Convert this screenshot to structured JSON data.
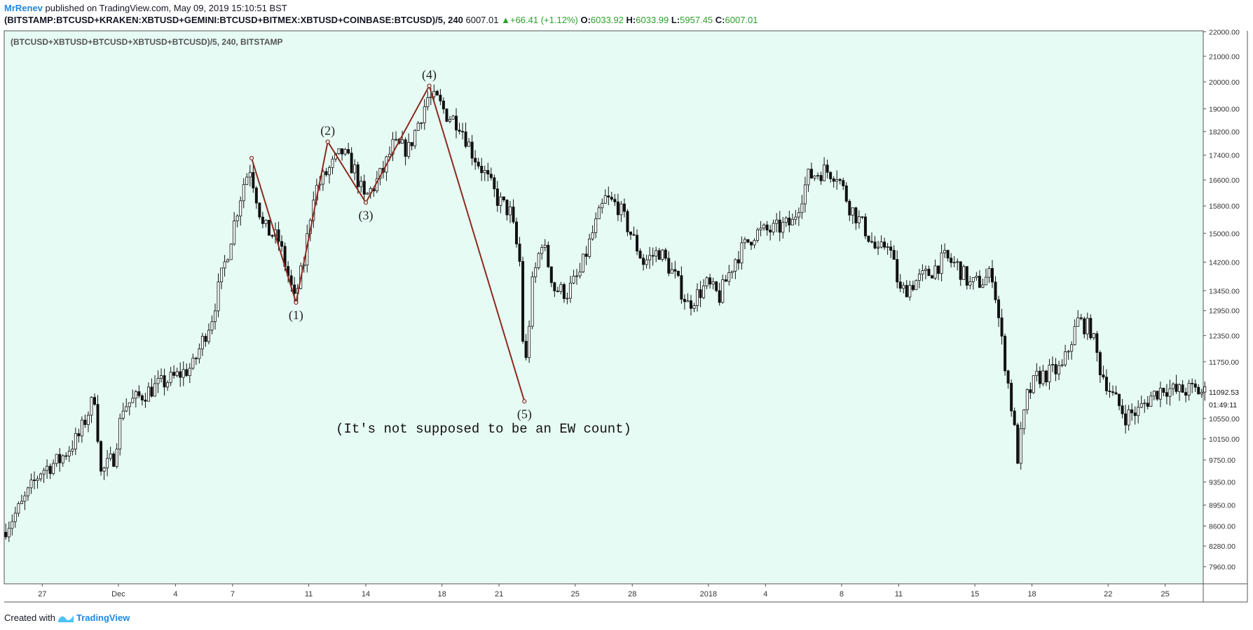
{
  "header": {
    "author": "MrRenev",
    "published": "published on TradingView.com, May 09, 2019 15:10:51 BST",
    "symbol": "(BITSTAMP:BTCUSD+KRAKEN:XBTUSD+GEMINI:BTCUSD+BITMEX:XBTUSD+COINBASE:BTCUSD)/5, 240",
    "last": "6007.01",
    "change": "+66.41 (+1.12%)",
    "o_label": "O:",
    "o_value": "6033.92",
    "h_label": "H:",
    "h_value": "6033.99",
    "l_label": "L:",
    "l_value": "5957.45",
    "c_label": "C:",
    "c_value": "6007.01"
  },
  "footer": {
    "created_with": "Created with",
    "brand": "TradingView"
  },
  "colors": {
    "background": "#e6fbf3",
    "candle": "#111111",
    "wave_line": "#8b2a1f",
    "axis_text": "#333333"
  },
  "chart_data": {
    "type": "candlestick",
    "title": "(BTCUSD+XBTUSD+BTCUSD+XBTUSD+BTCUSD)/5, 240, BITSTAMP",
    "y_scale": "log",
    "ylim": [
      7500,
      22300
    ],
    "y_ticks": [
      "22000.00",
      "21000.00",
      "20000.00",
      "19000.00",
      "18200.00",
      "17400.00",
      "16600.00",
      "15800.00",
      "15000.00",
      "14200.00",
      "13450.00",
      "12950.00",
      "12350.00",
      "11750.00",
      "10550.00",
      "10150.00",
      "9750.00",
      "9350.00",
      "8950.00",
      "8600.00",
      "8280.00",
      "7960.00"
    ],
    "price_label": "11092.53",
    "countdown": "01:49:11",
    "x_range": [
      "2017-11-25",
      "2018-01-27"
    ],
    "x_ticks": [
      {
        "label": "27",
        "date": "2017-11-27"
      },
      {
        "label": "Dec",
        "date": "2017-12-01"
      },
      {
        "label": "4",
        "date": "2017-12-04"
      },
      {
        "label": "7",
        "date": "2017-12-07"
      },
      {
        "label": "11",
        "date": "2017-12-11"
      },
      {
        "label": "14",
        "date": "2017-12-14"
      },
      {
        "label": "18",
        "date": "2017-12-18"
      },
      {
        "label": "21",
        "date": "2017-12-21"
      },
      {
        "label": "25",
        "date": "2017-12-25"
      },
      {
        "label": "28",
        "date": "2017-12-28"
      },
      {
        "label": "2018",
        "date": "2018-01-01"
      },
      {
        "label": "4",
        "date": "2018-01-04"
      },
      {
        "label": "8",
        "date": "2018-01-08"
      },
      {
        "label": "11",
        "date": "2018-01-11"
      },
      {
        "label": "15",
        "date": "2018-01-15"
      },
      {
        "label": "18",
        "date": "2018-01-18"
      },
      {
        "label": "22",
        "date": "2018-01-22"
      },
      {
        "label": "25",
        "date": "2018-01-25"
      }
    ],
    "price_path": [
      [
        "2017-11-25T00:00",
        8500
      ],
      [
        "2017-11-26T00:00",
        8950
      ],
      [
        "2017-11-27T00:00",
        9550
      ],
      [
        "2017-11-28T00:00",
        9750
      ],
      [
        "2017-11-29T00:00",
        10200
      ],
      [
        "2017-11-29T20:00",
        11000
      ],
      [
        "2017-11-30T04:00",
        9500
      ],
      [
        "2017-11-30T20:00",
        9800
      ],
      [
        "2017-12-01T08:00",
        10800
      ],
      [
        "2017-12-02T00:00",
        10950
      ],
      [
        "2017-12-03T00:00",
        11200
      ],
      [
        "2017-12-04T00:00",
        11400
      ],
      [
        "2017-12-05T00:00",
        11650
      ],
      [
        "2017-12-06T00:00",
        12800
      ],
      [
        "2017-12-06T20:00",
        14500
      ],
      [
        "2017-12-07T16:00",
        16500
      ],
      [
        "2017-12-08T00:00",
        17000
      ],
      [
        "2017-12-08T16:00",
        15200
      ],
      [
        "2017-12-09T12:00",
        14800
      ],
      [
        "2017-12-10T08:00",
        13200
      ],
      [
        "2017-12-10T20:00",
        14200
      ],
      [
        "2017-12-11T08:00",
        16200
      ],
      [
        "2017-12-12T00:00",
        16800
      ],
      [
        "2017-12-12T20:00",
        17500
      ],
      [
        "2017-12-13T12:00",
        16900
      ],
      [
        "2017-12-14T00:00",
        16000
      ],
      [
        "2017-12-14T12:00",
        16400
      ],
      [
        "2017-12-15T00:00",
        16900
      ],
      [
        "2017-12-15T12:00",
        17700
      ],
      [
        "2017-12-16T08:00",
        17600
      ],
      [
        "2017-12-16T20:00",
        18500
      ],
      [
        "2017-12-17T08:00",
        19400
      ],
      [
        "2017-12-17T20:00",
        19300
      ],
      [
        "2017-12-18T08:00",
        18800
      ],
      [
        "2017-12-19T00:00",
        18500
      ],
      [
        "2017-12-19T16:00",
        17500
      ],
      [
        "2017-12-20T08:00",
        16800
      ],
      [
        "2017-12-21T00:00",
        16000
      ],
      [
        "2017-12-21T16:00",
        15600
      ],
      [
        "2017-12-22T04:00",
        14200
      ],
      [
        "2017-12-22T10:00",
        11300
      ],
      [
        "2017-12-22T20:00",
        13600
      ],
      [
        "2017-12-23T08:00",
        14800
      ],
      [
        "2017-12-24T00:00",
        13500
      ],
      [
        "2017-12-24T16:00",
        13400
      ],
      [
        "2017-12-25T08:00",
        13900
      ],
      [
        "2017-12-26T00:00",
        15000
      ],
      [
        "2017-12-26T16:00",
        16000
      ],
      [
        "2017-12-27T08:00",
        15800
      ],
      [
        "2017-12-28T00:00",
        15000
      ],
      [
        "2017-12-28T16:00",
        14200
      ],
      [
        "2017-12-29T12:00",
        14500
      ],
      [
        "2017-12-30T08:00",
        13800
      ],
      [
        "2017-12-31T00:00",
        13100
      ],
      [
        "2018-01-01T00:00",
        13600
      ],
      [
        "2018-01-01T16:00",
        13300
      ],
      [
        "2018-01-02T12:00",
        14300
      ],
      [
        "2018-01-03T12:00",
        15000
      ],
      [
        "2018-01-04T12:00",
        15100
      ],
      [
        "2018-01-05T12:00",
        15300
      ],
      [
        "2018-01-06T08:00",
        16700
      ],
      [
        "2018-01-07T04:00",
        16900
      ],
      [
        "2018-01-07T20:00",
        16800
      ],
      [
        "2018-01-08T12:00",
        15800
      ],
      [
        "2018-01-09T08:00",
        15100
      ],
      [
        "2018-01-10T00:00",
        14400
      ],
      [
        "2018-01-10T12:00",
        14800
      ],
      [
        "2018-01-11T04:00",
        13400
      ],
      [
        "2018-01-12T00:00",
        13700
      ],
      [
        "2018-01-12T16:00",
        13900
      ],
      [
        "2018-01-13T12:00",
        14300
      ],
      [
        "2018-01-14T04:00",
        14100
      ],
      [
        "2018-01-14T20:00",
        13600
      ],
      [
        "2018-01-15T12:00",
        13700
      ],
      [
        "2018-01-16T00:00",
        13900
      ],
      [
        "2018-01-16T12:00",
        12200
      ],
      [
        "2018-01-17T00:00",
        10800
      ],
      [
        "2018-01-17T08:00",
        9800
      ],
      [
        "2018-01-17T20:00",
        11000
      ],
      [
        "2018-01-18T08:00",
        11400
      ],
      [
        "2018-01-19T00:00",
        11500
      ],
      [
        "2018-01-19T16:00",
        11600
      ],
      [
        "2018-01-20T12:00",
        12700
      ],
      [
        "2018-01-21T04:00",
        12500
      ],
      [
        "2018-01-21T16:00",
        11600
      ],
      [
        "2018-01-22T08:00",
        11000
      ],
      [
        "2018-01-23T00:00",
        10600
      ],
      [
        "2018-01-23T16:00",
        10700
      ],
      [
        "2018-01-24T08:00",
        11000
      ],
      [
        "2018-01-25T00:00",
        11200
      ],
      [
        "2018-01-25T16:00",
        11100
      ],
      [
        "2018-01-26T12:00",
        11150
      ],
      [
        "2018-01-27T00:00",
        11092
      ]
    ],
    "annotation_points": [
      {
        "label": "",
        "date": "2017-12-08T00:00",
        "price": 17300
      },
      {
        "label": "(1)",
        "date": "2017-12-10T08:00",
        "price": 13150
      },
      {
        "label": "(2)",
        "date": "2017-12-12T00:00",
        "price": 17850
      },
      {
        "label": "(3)",
        "date": "2017-12-14T00:00",
        "price": 15900
      },
      {
        "label": "(4)",
        "date": "2017-12-17T08:00",
        "price": 19850
      },
      {
        "label": "(5)",
        "date": "2017-12-22T08:00",
        "price": 10900
      }
    ],
    "note": "(It's not supposed to be an EW count)"
  }
}
